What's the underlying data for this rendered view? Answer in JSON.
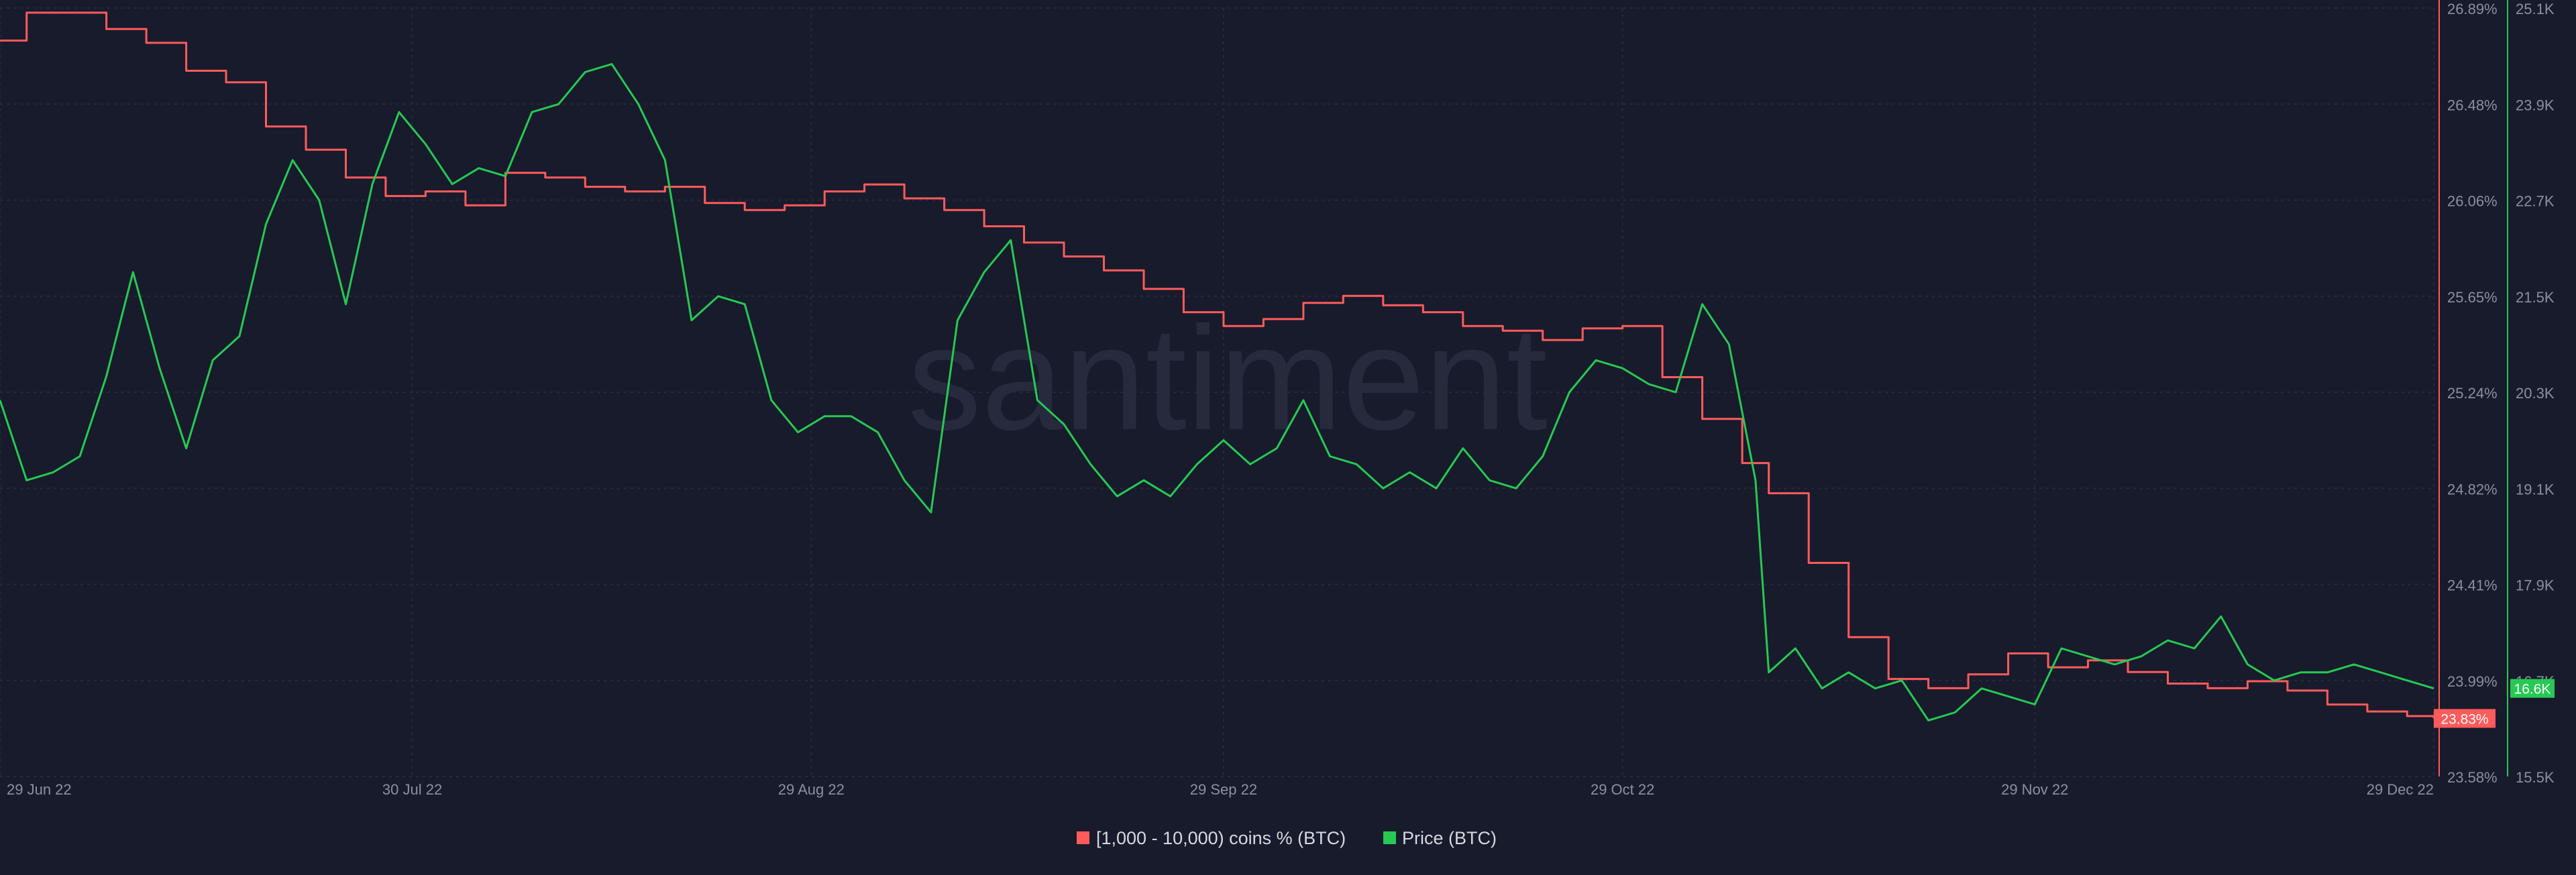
{
  "chart_data": {
    "type": "line",
    "watermark": "santiment",
    "x_tick_labels": [
      "29 Jun 22",
      "30 Jul 22",
      "29 Aug 22",
      "29 Sep 22",
      "29 Oct 22",
      "29 Nov 22",
      "29 Dec 22"
    ],
    "x_tick_dates": [
      "2022-06-29",
      "2022-07-30",
      "2022-08-29",
      "2022-09-29",
      "2022-10-29",
      "2022-11-29",
      "2022-12-29"
    ],
    "x_range": [
      "2022-06-29",
      "2022-12-29"
    ],
    "grid": true,
    "legend_position": "bottom-center",
    "y_left": {
      "series_name": "[1,000 - 10,000) coins % (BTC)",
      "tick_labels": [
        "26.89%",
        "26.48%",
        "26.06%",
        "25.65%",
        "25.24%",
        "24.82%",
        "24.41%",
        "23.99%",
        "23.58%"
      ],
      "ylim": [
        23.58,
        26.89
      ],
      "last_value_label": "23.83%"
    },
    "y_right": {
      "series_name": "Price (BTC)",
      "tick_labels": [
        "25.1K",
        "23.9K",
        "22.7K",
        "21.5K",
        "20.3K",
        "19.1K",
        "17.9K",
        "16.7K",
        "15.5K"
      ],
      "ylim": [
        15500,
        25100
      ],
      "last_value_label": "16.6K"
    },
    "series": [
      {
        "name": "[1,000 - 10,000) coins % (BTC)",
        "axis": "left",
        "color": "#ff5b5b",
        "x": [
          "2022-06-29",
          "2022-07-01",
          "2022-07-04",
          "2022-07-07",
          "2022-07-10",
          "2022-07-13",
          "2022-07-16",
          "2022-07-19",
          "2022-07-22",
          "2022-07-25",
          "2022-07-28",
          "2022-07-31",
          "2022-08-03",
          "2022-08-06",
          "2022-08-09",
          "2022-08-12",
          "2022-08-15",
          "2022-08-18",
          "2022-08-21",
          "2022-08-24",
          "2022-08-27",
          "2022-08-30",
          "2022-09-02",
          "2022-09-05",
          "2022-09-08",
          "2022-09-11",
          "2022-09-14",
          "2022-09-17",
          "2022-09-20",
          "2022-09-23",
          "2022-09-26",
          "2022-09-29",
          "2022-10-02",
          "2022-10-05",
          "2022-10-08",
          "2022-10-11",
          "2022-10-14",
          "2022-10-17",
          "2022-10-20",
          "2022-10-23",
          "2022-10-26",
          "2022-10-29",
          "2022-11-01",
          "2022-11-04",
          "2022-11-07",
          "2022-11-09",
          "2022-11-12",
          "2022-11-15",
          "2022-11-18",
          "2022-11-21",
          "2022-11-24",
          "2022-11-27",
          "2022-11-30",
          "2022-12-03",
          "2022-12-06",
          "2022-12-09",
          "2022-12-12",
          "2022-12-15",
          "2022-12-18",
          "2022-12-21",
          "2022-12-24",
          "2022-12-27",
          "2022-12-29"
        ],
        "values": [
          26.75,
          26.87,
          26.87,
          26.8,
          26.74,
          26.62,
          26.57,
          26.38,
          26.28,
          26.16,
          26.08,
          26.1,
          26.04,
          26.18,
          26.16,
          26.12,
          26.1,
          26.12,
          26.05,
          26.02,
          26.04,
          26.1,
          26.13,
          26.07,
          26.02,
          25.95,
          25.88,
          25.82,
          25.76,
          25.68,
          25.58,
          25.52,
          25.55,
          25.62,
          25.65,
          25.61,
          25.58,
          25.52,
          25.5,
          25.46,
          25.51,
          25.52,
          25.3,
          25.12,
          24.93,
          24.8,
          24.5,
          24.18,
          24.0,
          23.96,
          24.02,
          24.11,
          24.05,
          24.08,
          24.03,
          23.98,
          23.96,
          23.99,
          23.95,
          23.89,
          23.86,
          23.84,
          23.83
        ]
      },
      {
        "name": "Price (BTC)",
        "axis": "right",
        "color": "#26c953",
        "x": [
          "2022-06-29",
          "2022-07-01",
          "2022-07-03",
          "2022-07-05",
          "2022-07-07",
          "2022-07-09",
          "2022-07-11",
          "2022-07-13",
          "2022-07-15",
          "2022-07-17",
          "2022-07-19",
          "2022-07-21",
          "2022-07-23",
          "2022-07-25",
          "2022-07-27",
          "2022-07-29",
          "2022-07-31",
          "2022-08-02",
          "2022-08-04",
          "2022-08-06",
          "2022-08-08",
          "2022-08-10",
          "2022-08-12",
          "2022-08-14",
          "2022-08-16",
          "2022-08-18",
          "2022-08-20",
          "2022-08-22",
          "2022-08-24",
          "2022-08-26",
          "2022-08-28",
          "2022-08-30",
          "2022-09-01",
          "2022-09-03",
          "2022-09-05",
          "2022-09-07",
          "2022-09-09",
          "2022-09-11",
          "2022-09-13",
          "2022-09-15",
          "2022-09-17",
          "2022-09-19",
          "2022-09-21",
          "2022-09-23",
          "2022-09-25",
          "2022-09-27",
          "2022-09-29",
          "2022-10-01",
          "2022-10-03",
          "2022-10-05",
          "2022-10-07",
          "2022-10-09",
          "2022-10-11",
          "2022-10-13",
          "2022-10-15",
          "2022-10-17",
          "2022-10-19",
          "2022-10-21",
          "2022-10-23",
          "2022-10-25",
          "2022-10-27",
          "2022-10-29",
          "2022-10-31",
          "2022-11-02",
          "2022-11-04",
          "2022-11-06",
          "2022-11-08",
          "2022-11-09",
          "2022-11-11",
          "2022-11-13",
          "2022-11-15",
          "2022-11-17",
          "2022-11-19",
          "2022-11-21",
          "2022-11-23",
          "2022-11-25",
          "2022-11-27",
          "2022-11-29",
          "2022-12-01",
          "2022-12-03",
          "2022-12-05",
          "2022-12-07",
          "2022-12-09",
          "2022-12-11",
          "2022-12-13",
          "2022-12-15",
          "2022-12-17",
          "2022-12-19",
          "2022-12-21",
          "2022-12-23",
          "2022-12-25",
          "2022-12-27",
          "2022-12-29"
        ],
        "values": [
          20.2,
          19.2,
          19.3,
          19.5,
          20.5,
          21.8,
          20.6,
          19.6,
          20.7,
          21.0,
          22.4,
          23.2,
          22.7,
          21.4,
          22.9,
          23.8,
          23.4,
          22.9,
          23.1,
          23.0,
          23.8,
          23.9,
          24.3,
          24.4,
          23.9,
          23.2,
          21.2,
          21.5,
          21.4,
          20.2,
          19.8,
          20.0,
          20.0,
          19.8,
          19.2,
          18.8,
          21.2,
          21.8,
          22.2,
          20.2,
          19.9,
          19.4,
          19.0,
          19.2,
          19.0,
          19.4,
          19.7,
          19.4,
          19.6,
          20.2,
          19.5,
          19.4,
          19.1,
          19.3,
          19.1,
          19.6,
          19.2,
          19.1,
          19.5,
          20.3,
          20.7,
          20.6,
          20.4,
          20.3,
          21.4,
          20.9,
          19.2,
          16.8,
          17.1,
          16.6,
          16.8,
          16.6,
          16.7,
          16.2,
          16.3,
          16.6,
          16.5,
          16.4,
          17.1,
          17.0,
          16.9,
          17.0,
          17.2,
          17.1,
          17.5,
          16.9,
          16.7,
          16.8,
          16.8,
          16.9,
          16.8,
          16.7,
          16.6
        ]
      }
    ]
  },
  "legend": {
    "items": [
      {
        "label": "[1,000 - 10,000) coins % (BTC)",
        "color": "#ff5b5b"
      },
      {
        "label": "Price (BTC)",
        "color": "#26c953"
      }
    ]
  },
  "colors": {
    "background": "#181b2b",
    "grid": "#2a2e42",
    "axis_text": "#8a8fa3",
    "legend_text": "#d6d8e0",
    "watermark": "#262a3c"
  }
}
